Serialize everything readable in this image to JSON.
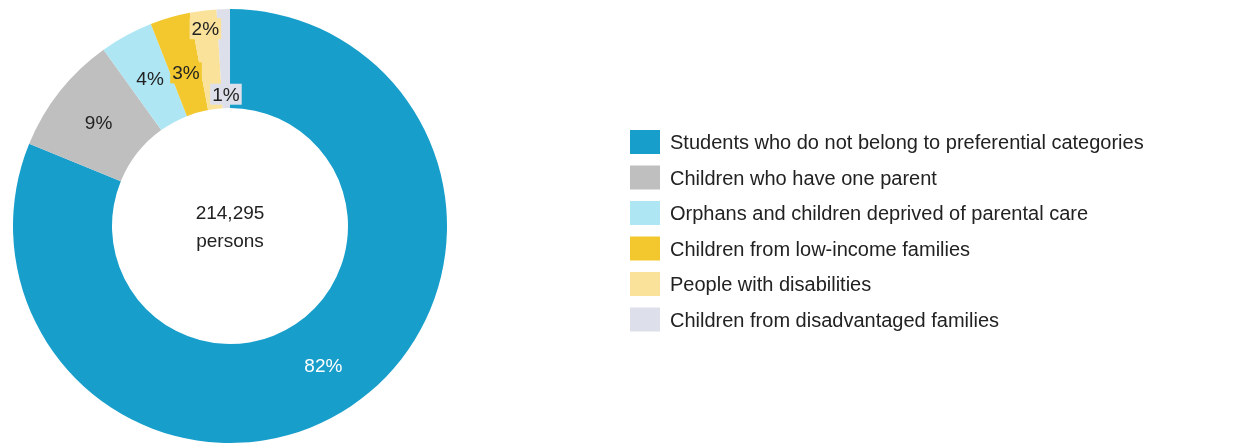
{
  "chart_data": {
    "type": "donut",
    "categories": [
      "Students who do not belong to preferential categories",
      "Children who have one parent",
      "Orphans and children deprived of parental care",
      "Children from low-income families",
      "People with disabilities",
      "Children from disadvantaged families"
    ],
    "values": [
      82,
      9,
      4,
      3,
      2,
      1
    ],
    "colors": [
      "#179ecb",
      "#bfbfbf",
      "#aee6f4",
      "#f2c82e",
      "#fbe29a",
      "#dde0ea"
    ],
    "value_labels": [
      "82%",
      "9%",
      "4%",
      "3%",
      "2%",
      "1%"
    ],
    "annotations": [
      "214,295\npersons"
    ],
    "legend": "right"
  }
}
